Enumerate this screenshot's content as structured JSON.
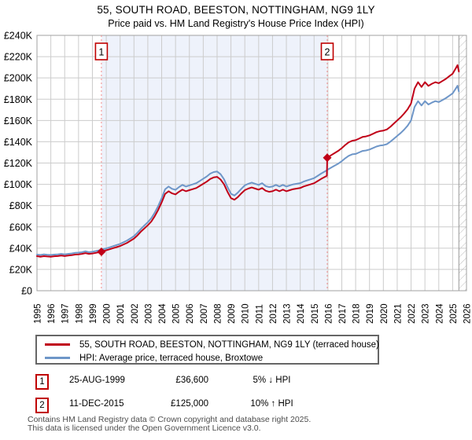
{
  "header": {
    "title": "55, SOUTH ROAD, BEESTON, NOTTINGHAM, NG9 1LY",
    "subtitle": "Price paid vs. HM Land Registry's House Price Index (HPI)"
  },
  "colors": {
    "property": "#c00018",
    "hpi": "#6e96c8",
    "band": "#eef2fb",
    "grid": "#cccccc",
    "frame": "#a0a0a0",
    "dashed_marker": "#f28b8b",
    "marker_box_border": "#c00000",
    "hatch": "#bbbbbb"
  },
  "legend": {
    "items": [
      {
        "label": "55, SOUTH ROAD, BEESTON, NOTTINGHAM, NG9 1LY (terraced house)",
        "series": "property"
      },
      {
        "label": "HPI: Average price, terraced house, Broxtowe",
        "series": "hpi"
      }
    ]
  },
  "transactions": [
    {
      "num": "1",
      "date": "25-AUG-1999",
      "price": "£36,600",
      "delta": "5% ↓ HPI"
    },
    {
      "num": "2",
      "date": "11-DEC-2015",
      "price": "£125,000",
      "delta": "10% ↑ HPI"
    }
  ],
  "footer": {
    "line1": "Contains HM Land Registry data © Crown copyright and database right 2025.",
    "line2": "This data is licensed under the Open Government Licence v3.0."
  },
  "chart_data": {
    "type": "line",
    "title": "Price paid vs. HPI",
    "units": "GBP thousands",
    "xlim": [
      1995,
      2026
    ],
    "ylim": [
      0,
      240
    ],
    "ytick_step": 20,
    "grid": true,
    "legend_position": "bottom",
    "y_tick_labels": [
      "£0",
      "£20K",
      "£40K",
      "£60K",
      "£80K",
      "£100K",
      "£120K",
      "£140K",
      "£160K",
      "£180K",
      "£200K",
      "£220K",
      "£240K"
    ],
    "x_tick_labels": [
      "1995",
      "1996",
      "1997",
      "1998",
      "1999",
      "2000",
      "2001",
      "2002",
      "2003",
      "2004",
      "2005",
      "2006",
      "2007",
      "2008",
      "2009",
      "2010",
      "2011",
      "2012",
      "2013",
      "2014",
      "2015",
      "2016",
      "2017",
      "2018",
      "2019",
      "2020",
      "2021",
      "2022",
      "2023",
      "2024",
      "2025",
      "2026"
    ],
    "band_x": [
      1999.65,
      2015.95
    ],
    "hatch_from_x": 2025.45,
    "sales": [
      {
        "label": "1",
        "x": 1999.65,
        "y": 36.6
      },
      {
        "label": "2",
        "x": 2015.95,
        "y": 125.0
      }
    ],
    "series": [
      {
        "name": "HPI: Average price, terraced house, Broxtowe",
        "color_key": "hpi",
        "points": [
          [
            1995.0,
            34.0
          ],
          [
            1995.25,
            33.6
          ],
          [
            1995.5,
            34.1
          ],
          [
            1995.75,
            33.8
          ],
          [
            1996.0,
            33.6
          ],
          [
            1996.25,
            34.0
          ],
          [
            1996.5,
            34.2
          ],
          [
            1996.75,
            34.6
          ],
          [
            1997.0,
            34.2
          ],
          [
            1997.25,
            34.6
          ],
          [
            1997.5,
            35.0
          ],
          [
            1997.75,
            35.6
          ],
          [
            1998.0,
            35.8
          ],
          [
            1998.25,
            36.2
          ],
          [
            1998.5,
            37.1
          ],
          [
            1998.75,
            36.2
          ],
          [
            1999.0,
            36.6
          ],
          [
            1999.25,
            37.3
          ],
          [
            1999.65,
            38.5
          ],
          [
            1999.75,
            39.0
          ],
          [
            2000.0,
            39.8
          ],
          [
            2000.25,
            40.8
          ],
          [
            2000.5,
            41.9
          ],
          [
            2000.75,
            43.0
          ],
          [
            2001.0,
            44.0
          ],
          [
            2001.25,
            45.6
          ],
          [
            2001.5,
            47.2
          ],
          [
            2001.75,
            49.2
          ],
          [
            2002.0,
            51.3
          ],
          [
            2002.25,
            54.5
          ],
          [
            2002.5,
            58.1
          ],
          [
            2002.75,
            61.3
          ],
          [
            2003.0,
            64.4
          ],
          [
            2003.25,
            68.1
          ],
          [
            2003.5,
            73.3
          ],
          [
            2003.75,
            79.6
          ],
          [
            2004.0,
            86.9
          ],
          [
            2004.25,
            95.3
          ],
          [
            2004.5,
            97.9
          ],
          [
            2004.75,
            95.8
          ],
          [
            2005.0,
            94.8
          ],
          [
            2005.25,
            97.4
          ],
          [
            2005.5,
            99.5
          ],
          [
            2005.75,
            97.9
          ],
          [
            2006.0,
            99.0
          ],
          [
            2006.25,
            100.0
          ],
          [
            2006.5,
            101.1
          ],
          [
            2006.75,
            103.2
          ],
          [
            2007.0,
            105.3
          ],
          [
            2007.25,
            107.4
          ],
          [
            2007.5,
            110.0
          ],
          [
            2007.75,
            111.5
          ],
          [
            2008.0,
            112.0
          ],
          [
            2008.25,
            109.5
          ],
          [
            2008.5,
            104.7
          ],
          [
            2008.75,
            97.4
          ],
          [
            2009.0,
            91.1
          ],
          [
            2009.25,
            89.5
          ],
          [
            2009.5,
            92.2
          ],
          [
            2009.75,
            95.8
          ],
          [
            2010.0,
            99.0
          ],
          [
            2010.25,
            100.5
          ],
          [
            2010.5,
            101.6
          ],
          [
            2010.75,
            100.5
          ],
          [
            2011.0,
            99.5
          ],
          [
            2011.25,
            101.1
          ],
          [
            2011.5,
            98.4
          ],
          [
            2011.75,
            97.4
          ],
          [
            2012.0,
            97.9
          ],
          [
            2012.25,
            99.5
          ],
          [
            2012.5,
            97.9
          ],
          [
            2012.75,
            99.5
          ],
          [
            2013.0,
            97.9
          ],
          [
            2013.25,
            99.0
          ],
          [
            2013.5,
            100.0
          ],
          [
            2013.75,
            100.5
          ],
          [
            2014.0,
            101.1
          ],
          [
            2014.25,
            102.6
          ],
          [
            2014.5,
            103.7
          ],
          [
            2014.75,
            104.7
          ],
          [
            2015.0,
            105.8
          ],
          [
            2015.25,
            107.9
          ],
          [
            2015.5,
            110.0
          ],
          [
            2015.92,
            113.1
          ],
          [
            2015.95,
            113.6
          ],
          [
            2016.25,
            115.9
          ],
          [
            2016.5,
            117.7
          ],
          [
            2016.75,
            119.5
          ],
          [
            2017.0,
            121.8
          ],
          [
            2017.25,
            124.5
          ],
          [
            2017.5,
            126.8
          ],
          [
            2017.75,
            128.2
          ],
          [
            2018.0,
            128.6
          ],
          [
            2018.25,
            130.0
          ],
          [
            2018.5,
            131.4
          ],
          [
            2018.75,
            131.8
          ],
          [
            2019.0,
            132.7
          ],
          [
            2019.25,
            134.1
          ],
          [
            2019.5,
            135.5
          ],
          [
            2019.75,
            136.4
          ],
          [
            2020.0,
            136.8
          ],
          [
            2020.25,
            137.7
          ],
          [
            2020.5,
            140.0
          ],
          [
            2020.75,
            142.7
          ],
          [
            2021.0,
            145.5
          ],
          [
            2021.25,
            148.2
          ],
          [
            2021.5,
            151.4
          ],
          [
            2021.75,
            155.0
          ],
          [
            2022.0,
            160.0
          ],
          [
            2022.25,
            172.7
          ],
          [
            2022.5,
            178.2
          ],
          [
            2022.75,
            174.1
          ],
          [
            2023.0,
            178.2
          ],
          [
            2023.25,
            175.0
          ],
          [
            2023.5,
            176.8
          ],
          [
            2023.75,
            178.2
          ],
          [
            2024.0,
            177.3
          ],
          [
            2024.25,
            179.1
          ],
          [
            2024.5,
            180.9
          ],
          [
            2024.75,
            183.2
          ],
          [
            2025.0,
            185.5
          ],
          [
            2025.2,
            189.5
          ],
          [
            2025.35,
            192.7
          ],
          [
            2025.45,
            187.3
          ]
        ]
      },
      {
        "name": "55, SOUTH ROAD, BEESTON, NOTTINGHAM, NG9 1LY (terraced house)",
        "color_key": "property",
        "points": [
          [
            1995.0,
            32.5
          ],
          [
            1995.25,
            32.0
          ],
          [
            1995.5,
            32.5
          ],
          [
            1995.75,
            32.2
          ],
          [
            1996.0,
            32.0
          ],
          [
            1996.25,
            32.4
          ],
          [
            1996.5,
            32.6
          ],
          [
            1996.75,
            33.0
          ],
          [
            1997.0,
            32.6
          ],
          [
            1997.25,
            33.0
          ],
          [
            1997.5,
            33.4
          ],
          [
            1997.75,
            34.0
          ],
          [
            1998.0,
            34.2
          ],
          [
            1998.25,
            34.6
          ],
          [
            1998.5,
            35.4
          ],
          [
            1998.75,
            34.6
          ],
          [
            1999.0,
            35.0
          ],
          [
            1999.25,
            35.6
          ],
          [
            1999.65,
            36.6
          ],
          [
            1999.75,
            37.2
          ],
          [
            2000.0,
            38.0
          ],
          [
            2000.25,
            39.0
          ],
          [
            2000.5,
            40.0
          ],
          [
            2000.75,
            41.0
          ],
          [
            2001.0,
            42.0
          ],
          [
            2001.25,
            43.5
          ],
          [
            2001.5,
            45.0
          ],
          [
            2001.75,
            47.0
          ],
          [
            2002.0,
            49.0
          ],
          [
            2002.25,
            52.0
          ],
          [
            2002.5,
            55.5
          ],
          [
            2002.75,
            58.5
          ],
          [
            2003.0,
            61.5
          ],
          [
            2003.25,
            65.0
          ],
          [
            2003.5,
            70.0
          ],
          [
            2003.75,
            76.0
          ],
          [
            2004.0,
            83.0
          ],
          [
            2004.25,
            91.0
          ],
          [
            2004.5,
            93.5
          ],
          [
            2004.75,
            91.5
          ],
          [
            2005.0,
            90.5
          ],
          [
            2005.25,
            93.0
          ],
          [
            2005.5,
            95.0
          ],
          [
            2005.75,
            93.5
          ],
          [
            2006.0,
            94.5
          ],
          [
            2006.25,
            95.5
          ],
          [
            2006.5,
            96.5
          ],
          [
            2006.75,
            98.5
          ],
          [
            2007.0,
            100.5
          ],
          [
            2007.25,
            102.5
          ],
          [
            2007.5,
            105.0
          ],
          [
            2007.75,
            106.5
          ],
          [
            2008.0,
            107.0
          ],
          [
            2008.25,
            104.5
          ],
          [
            2008.5,
            100.0
          ],
          [
            2008.75,
            93.0
          ],
          [
            2009.0,
            87.0
          ],
          [
            2009.25,
            85.5
          ],
          [
            2009.5,
            88.0
          ],
          [
            2009.75,
            91.5
          ],
          [
            2010.0,
            94.5
          ],
          [
            2010.25,
            96.0
          ],
          [
            2010.5,
            97.0
          ],
          [
            2010.75,
            96.0
          ],
          [
            2011.0,
            95.0
          ],
          [
            2011.25,
            96.5
          ],
          [
            2011.5,
            94.0
          ],
          [
            2011.75,
            93.0
          ],
          [
            2012.0,
            93.5
          ],
          [
            2012.25,
            95.0
          ],
          [
            2012.5,
            93.5
          ],
          [
            2012.75,
            95.0
          ],
          [
            2013.0,
            93.5
          ],
          [
            2013.25,
            94.5
          ],
          [
            2013.5,
            95.5
          ],
          [
            2013.75,
            96.0
          ],
          [
            2014.0,
            96.5
          ],
          [
            2014.25,
            98.0
          ],
          [
            2014.5,
            99.0
          ],
          [
            2014.75,
            100.0
          ],
          [
            2015.0,
            101.0
          ],
          [
            2015.25,
            103.0
          ],
          [
            2015.5,
            105.0
          ],
          [
            2015.92,
            108.0
          ],
          [
            2015.95,
            125.0
          ],
          [
            2016.25,
            127.5
          ],
          [
            2016.5,
            129.5
          ],
          [
            2016.75,
            131.5
          ],
          [
            2017.0,
            134.0
          ],
          [
            2017.25,
            137.0
          ],
          [
            2017.5,
            139.5
          ],
          [
            2017.75,
            141.0
          ],
          [
            2018.0,
            141.5
          ],
          [
            2018.25,
            143.0
          ],
          [
            2018.5,
            144.5
          ],
          [
            2018.75,
            145.0
          ],
          [
            2019.0,
            146.0
          ],
          [
            2019.25,
            147.5
          ],
          [
            2019.5,
            149.0
          ],
          [
            2019.75,
            150.0
          ],
          [
            2020.0,
            150.5
          ],
          [
            2020.25,
            151.5
          ],
          [
            2020.5,
            154.0
          ],
          [
            2020.75,
            157.0
          ],
          [
            2021.0,
            160.0
          ],
          [
            2021.25,
            163.0
          ],
          [
            2021.5,
            166.5
          ],
          [
            2021.75,
            170.5
          ],
          [
            2022.0,
            176.0
          ],
          [
            2022.25,
            190.0
          ],
          [
            2022.5,
            196.0
          ],
          [
            2022.75,
            191.5
          ],
          [
            2023.0,
            196.0
          ],
          [
            2023.25,
            192.5
          ],
          [
            2023.5,
            194.5
          ],
          [
            2023.75,
            196.0
          ],
          [
            2024.0,
            195.0
          ],
          [
            2024.25,
            197.0
          ],
          [
            2024.5,
            199.0
          ],
          [
            2024.75,
            201.5
          ],
          [
            2025.0,
            204.0
          ],
          [
            2025.2,
            208.5
          ],
          [
            2025.35,
            212.0
          ],
          [
            2025.45,
            206.0
          ]
        ]
      }
    ]
  }
}
